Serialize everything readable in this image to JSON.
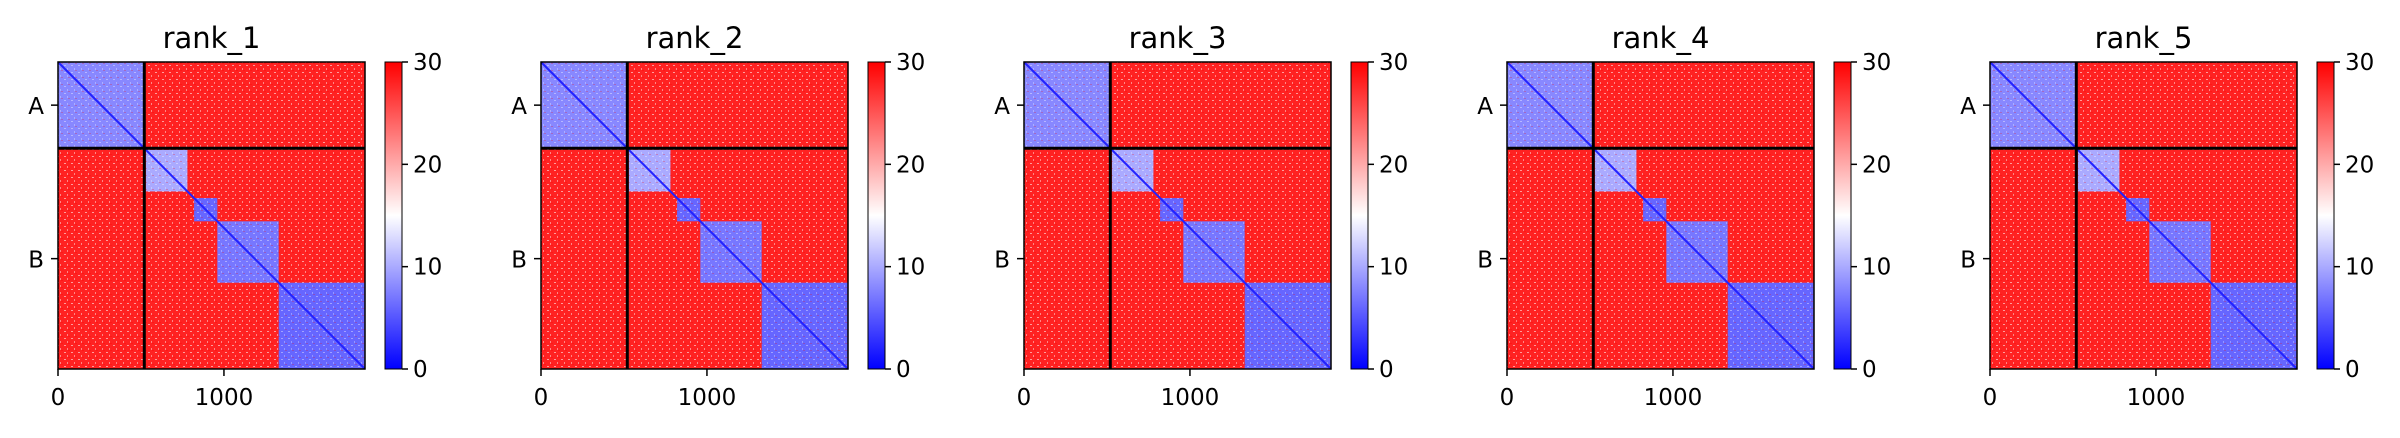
{
  "chart_data": {
    "type": "heatmap",
    "figure_description_colors": {
      "colormap": [
        "#0000ff",
        "#ffffff",
        "#ff0000"
      ],
      "background": "#ffffff",
      "divider": "#000000"
    },
    "colorbar": {
      "ticks": [
        0,
        10,
        20,
        30
      ],
      "vmin": 0,
      "vmax": 30
    },
    "x_ticks": [
      0,
      1000
    ],
    "x_range": [
      0,
      1850
    ],
    "chain_labels": [
      "A",
      "B"
    ],
    "chain_boundary": 520,
    "blocks": [
      {
        "start": 0,
        "end": 520,
        "level": 8
      },
      {
        "start": 530,
        "end": 780,
        "level": 10
      },
      {
        "start": 820,
        "end": 960,
        "level": 6
      },
      {
        "start": 960,
        "end": 1330,
        "level": 7
      },
      {
        "start": 1330,
        "end": 1850,
        "level": 6
      }
    ],
    "panels": [
      {
        "title": "rank_1",
        "offdiag_level": 28
      },
      {
        "title": "rank_2",
        "offdiag_level": 28
      },
      {
        "title": "rank_3",
        "offdiag_level": 28
      },
      {
        "title": "rank_4",
        "offdiag_level": 28
      },
      {
        "title": "rank_5",
        "offdiag_level": 28
      }
    ]
  }
}
